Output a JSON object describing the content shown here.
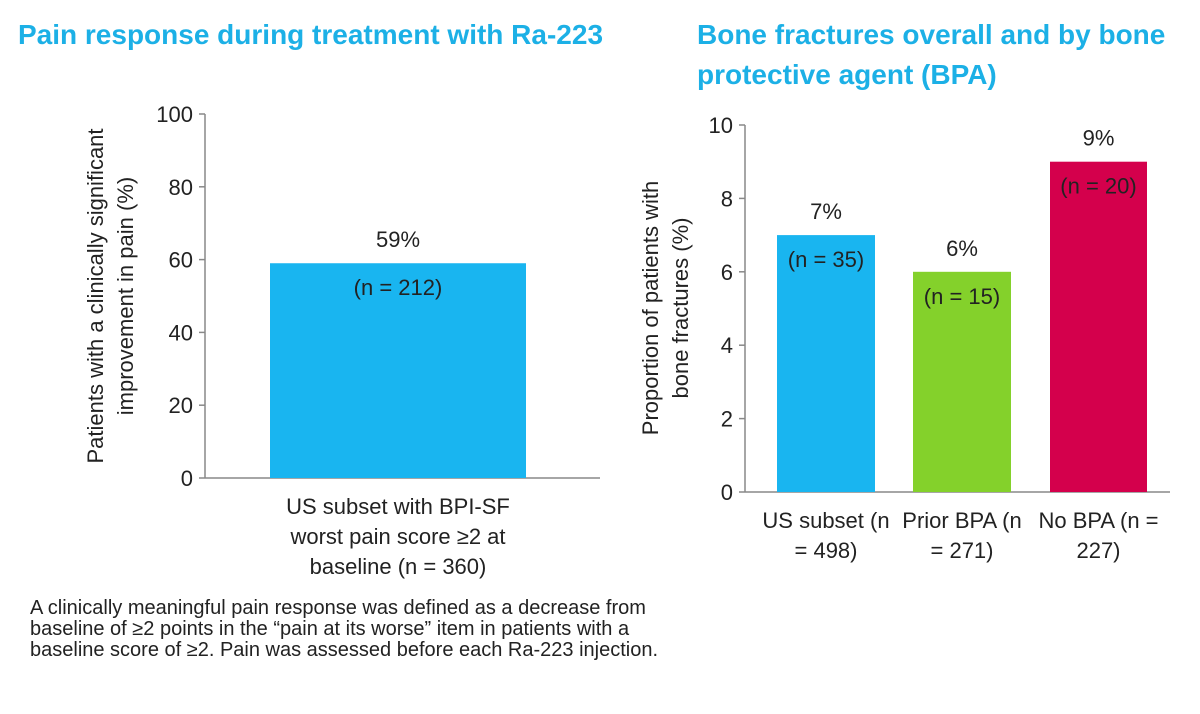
{
  "chart_data": [
    {
      "type": "bar",
      "title": "Pain response during treatment with Ra-223",
      "y_label": "Patients with a clinically significant improvement in pain (%)",
      "categories": [
        "US subset with BPI-SF worst pain score ≥2 at baseline (n = 360)"
      ],
      "values": [
        59
      ],
      "value_labels": [
        "59%"
      ],
      "annotations": [
        "(n = 212)"
      ],
      "colors": [
        "#19b5f0"
      ],
      "annotation_colors": [
        "#222222"
      ],
      "ylim": [
        0,
        100
      ],
      "yticks": [
        0,
        20,
        40,
        60,
        80,
        100
      ]
    },
    {
      "type": "bar",
      "title": "Bone fractures overall and by bone protective agent (BPA)",
      "y_label": "Proportion of patients with bone fractures (%)",
      "categories": [
        "US subset (n = 498)",
        "Prior BPA (n = 271)",
        "No BPA (n = 227)"
      ],
      "values": [
        7,
        6,
        9
      ],
      "value_labels": [
        "7%",
        "6%",
        "9%"
      ],
      "annotations": [
        "(n = 35)",
        "(n = 15)",
        "(n = 20)"
      ],
      "colors": [
        "#19b5f0",
        "#84d12b",
        "#d4004c"
      ],
      "annotation_colors": [
        "#222222",
        "#222222",
        "#ffffff"
      ],
      "ylim": [
        0,
        10
      ],
      "yticks": [
        0,
        2,
        4,
        6,
        8,
        10
      ]
    }
  ],
  "footnote": "A clinically meaningful pain response was defined as a decrease from baseline of ≥2 points in the “pain at its worse” item in patients with a baseline score of ≥2. Pain was assessed before each Ra-223 injection."
}
